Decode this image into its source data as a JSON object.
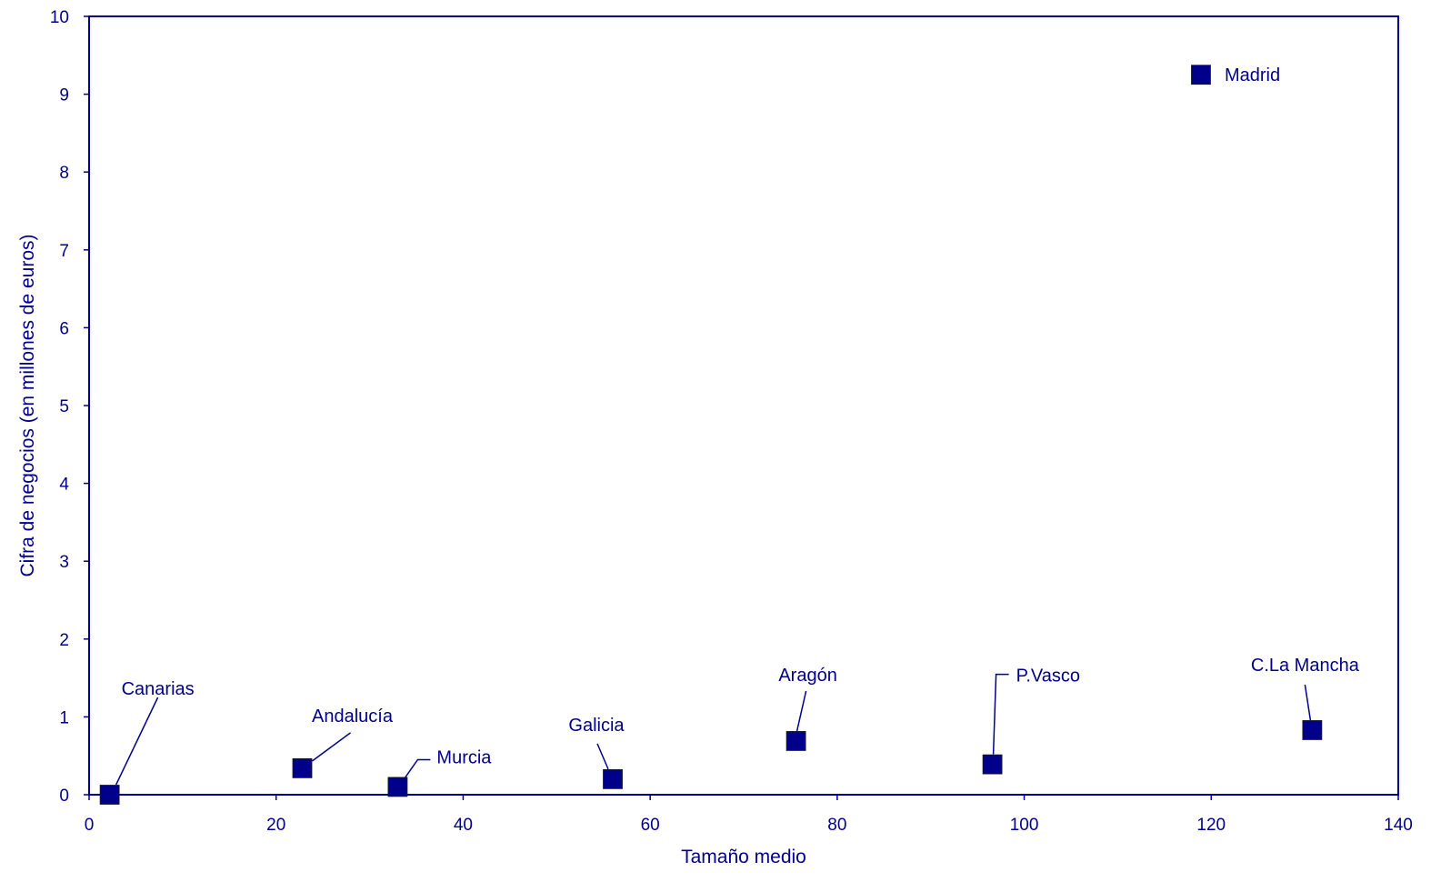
{
  "chart_data": {
    "type": "scatter",
    "title": "",
    "xlabel": "Tamaño medio",
    "ylabel": "Cifra de negocios (en millones de euros)",
    "xlim": [
      0,
      140
    ],
    "ylim": [
      0,
      10
    ],
    "xticks": [
      0,
      20,
      40,
      60,
      80,
      100,
      120,
      140
    ],
    "yticks": [
      0,
      1,
      2,
      3,
      4,
      5,
      6,
      7,
      8,
      9,
      10
    ],
    "grid": false,
    "color": "#00008B",
    "marker": "square",
    "points": [
      {
        "label": "Canarias",
        "x": 2.2,
        "y": 0.0
      },
      {
        "label": "Andalucía",
        "x": 22.8,
        "y": 0.34
      },
      {
        "label": "Murcia",
        "x": 33.0,
        "y": 0.1
      },
      {
        "label": "Galicia",
        "x": 56.0,
        "y": 0.2
      },
      {
        "label": "Aragón",
        "x": 75.6,
        "y": 0.69
      },
      {
        "label": "P.Vasco",
        "x": 96.6,
        "y": 0.39
      },
      {
        "label": "Madrid",
        "x": 118.9,
        "y": 9.25
      },
      {
        "label": "C.La Mancha",
        "x": 130.8,
        "y": 0.83
      }
    ]
  }
}
